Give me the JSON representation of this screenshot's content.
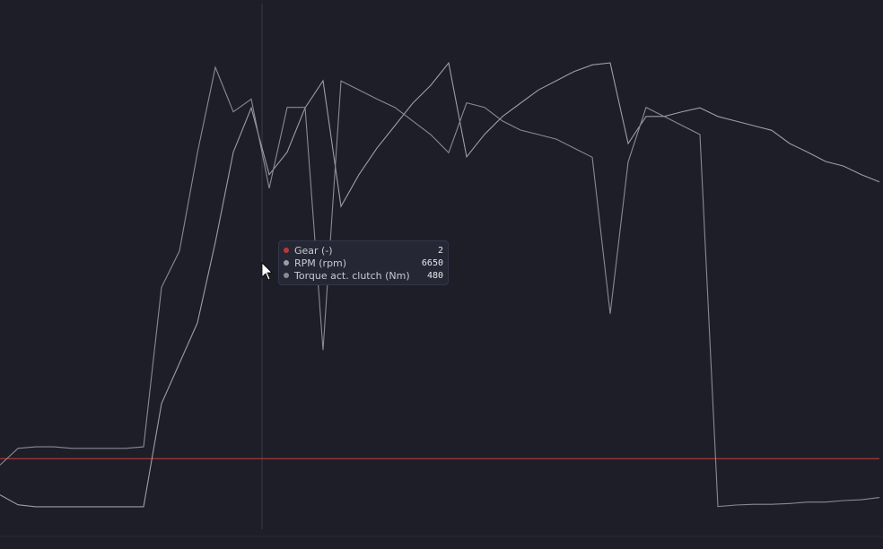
{
  "chart_data": {
    "type": "line",
    "series": [
      {
        "name": "Gear (-)",
        "color": "#b83a36",
        "ylim": [
          0,
          15
        ],
        "values": [
          2,
          2,
          2,
          2,
          2,
          2,
          2,
          2,
          2,
          2,
          2,
          2,
          2,
          2,
          2,
          2,
          2,
          2,
          2,
          2,
          2,
          2,
          2,
          2,
          2,
          2,
          2,
          2,
          2,
          2,
          2,
          2,
          2,
          2,
          2,
          2,
          2,
          2,
          2,
          2,
          2,
          2,
          2,
          2,
          2,
          2,
          2,
          2,
          2,
          2
        ]
      },
      {
        "name": "RPM (rpm)",
        "color": "#9c9cae",
        "ylim": [
          0,
          8000
        ],
        "values": [
          520,
          370,
          340,
          340,
          340,
          340,
          340,
          340,
          340,
          1900,
          2510,
          3120,
          4340,
          5700,
          6370,
          5360,
          5700,
          6370,
          6780,
          4880,
          5360,
          5760,
          6100,
          6440,
          6710,
          7050,
          5630,
          5970,
          6240,
          6440,
          6640,
          6780,
          6920,
          7020,
          7050,
          5830,
          6240,
          6240,
          6310,
          6370,
          6240,
          6170,
          6100,
          6030,
          5830,
          5700,
          5560,
          5490,
          5360,
          5250
        ]
      },
      {
        "name": "Torque act. clutch (Nm)",
        "color": "#8a8a96",
        "ylim": [
          -100,
          600
        ],
        "values": [
          -15,
          7,
          9,
          9,
          7,
          7,
          7,
          7,
          9,
          220,
          268,
          398,
          511,
          452,
          469,
          351,
          458,
          458,
          137,
          493,
          481,
          469,
          458,
          440,
          422,
          398,
          464,
          458,
          440,
          428,
          422,
          416,
          404,
          392,
          185,
          386,
          458,
          446,
          434,
          422,
          -70,
          -68,
          -67,
          -67,
          -66,
          -64,
          -64,
          -62,
          -61,
          -58
        ]
      }
    ],
    "tooltip_values": [
      2,
      6650,
      480
    ]
  }
}
